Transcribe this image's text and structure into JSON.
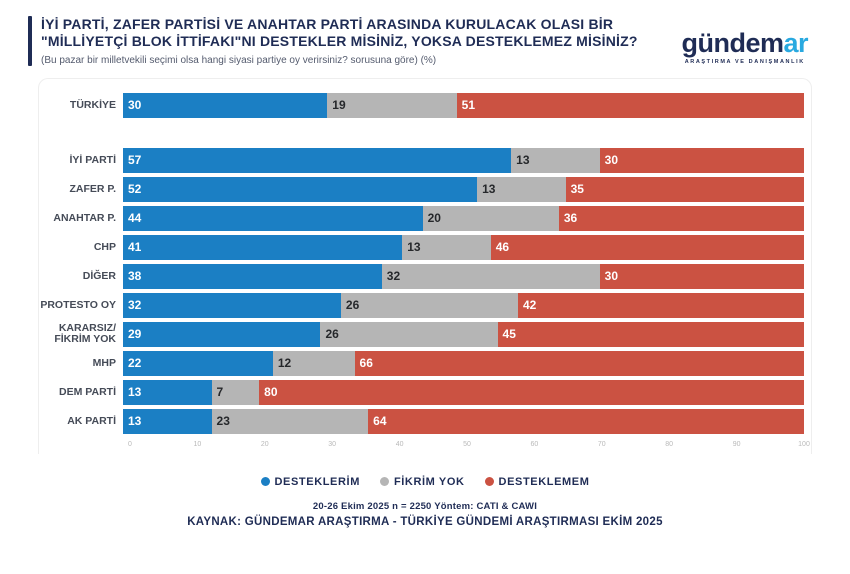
{
  "header": {
    "title": "İYİ PARTİ, ZAFER PARTİSİ VE ANAHTAR PARTİ ARASINDA KURULACAK OLASI BİR \"MİLLİYETÇİ BLOK İTTİFAKI\"NI DESTEKLER MİSİNİZ, YOKSA DESTEKLEMEZ MİSİNİZ?",
    "subtitle": "(Bu pazar bir milletvekili seçimi olsa hangi siyasi partiye oy verirsiniz? sorusuna göre) (%)",
    "logo": {
      "part1": "gündem",
      "part2": "ar",
      "tagline": "ARAŞTIRMA VE DANIŞMANLIK",
      "navy": "#1f2c55",
      "light_blue": "#29a9e0"
    }
  },
  "chart_data": {
    "type": "bar",
    "orientation": "horizontal",
    "stacked": true,
    "categories": [
      "TÜRKİYE",
      "İYİ PARTİ",
      "ZAFER P.",
      "ANAHTAR P.",
      "CHP",
      "DİĞER",
      "PROTESTO OY",
      "KARARSIZ/\nFİKRİM YOK",
      "MHP",
      "DEM PARTİ",
      "AK PARTİ"
    ],
    "series": [
      {
        "key": "desteklerim",
        "name": "DESTEKLERİM",
        "color": "#1b7fc4",
        "label_color": "#ffffff",
        "values": [
          30,
          57,
          52,
          44,
          41,
          38,
          32,
          29,
          22,
          13,
          13
        ]
      },
      {
        "key": "fikrim-yok",
        "name": "FİKRİM YOK",
        "color": "#b5b5b5",
        "label_color": "#26282b",
        "values": [
          19,
          13,
          13,
          20,
          13,
          32,
          26,
          26,
          12,
          7,
          23
        ]
      },
      {
        "key": "desteklemem",
        "name": "DESTEKLEMEM",
        "color": "#cb5242",
        "label_color": "#ffffff",
        "values": [
          51,
          30,
          35,
          36,
          46,
          30,
          42,
          45,
          66,
          80,
          64
        ]
      }
    ],
    "xlim": [
      0,
      100
    ],
    "x_ticks": [
      0,
      10,
      20,
      30,
      40,
      50,
      60,
      70,
      80,
      90,
      100
    ],
    "grid": false,
    "legend_position": "bottom"
  },
  "footer": {
    "methodology": "20-26 Ekim 2025 n = 2250 Yöntem: CATI & CAWI",
    "source": "KAYNAK: GÜNDEMAR ARAŞTIRMA - TÜRKİYE GÜNDEMİ ARAŞTIRMASI EKİM 2025"
  }
}
